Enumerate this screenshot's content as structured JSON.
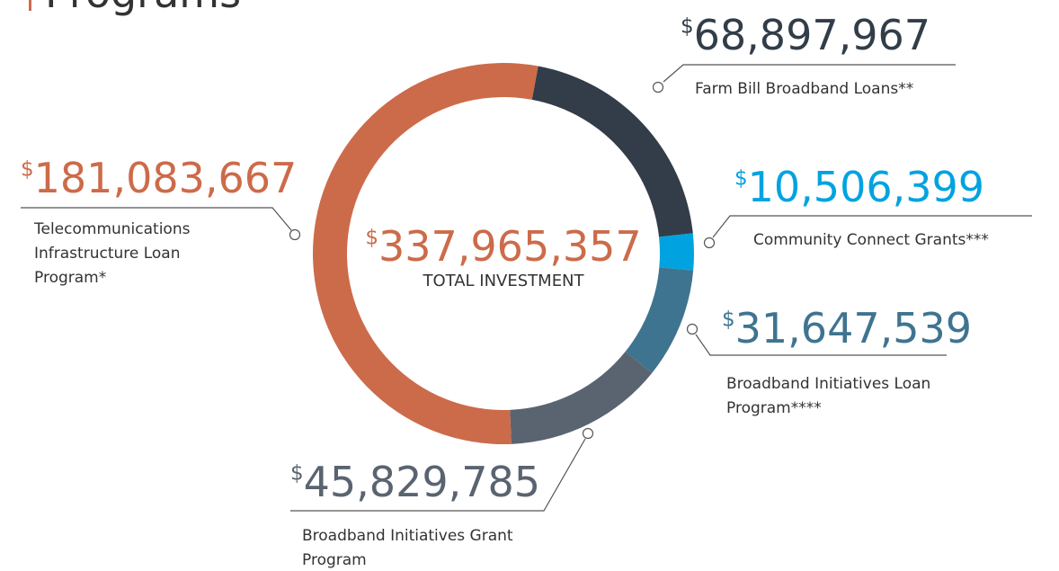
{
  "chart_data": {
    "type": "pie",
    "title": "Programs",
    "total_label": "$337,965,357",
    "total_caption": "TOTAL INVESTMENT",
    "categories": [
      "Farm Bill Broadband Loans**",
      "Community Connect Grants***",
      "Broadband Initiatives Loan Program****",
      "Broadband Initiatives Grant Program",
      "Telecommunications Infrastructure Loan Program*"
    ],
    "values": [
      68897967,
      10506399,
      31647539,
      45829785,
      181083667
    ],
    "value_labels": [
      "$68,897,967",
      "$10,506,399",
      "$31,647,539",
      "$45,829,785",
      "$181,083,667"
    ],
    "colors": [
      "#323d49",
      "#00a3e0",
      "#3f7490",
      "#5a6470",
      "#cc6b4a"
    ],
    "donut": true
  }
}
